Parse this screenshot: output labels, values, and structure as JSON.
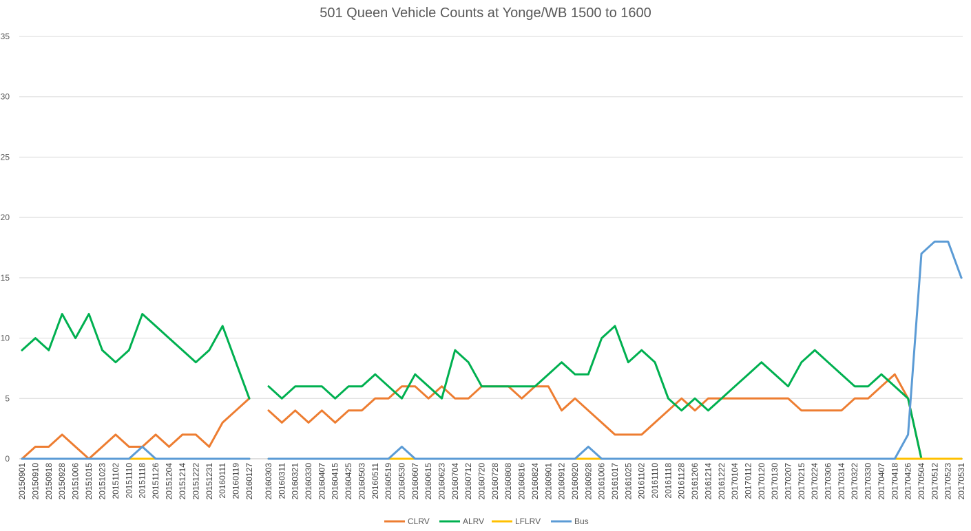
{
  "chart_data": {
    "type": "line",
    "title": "501 Queen Vehicle Counts at Yonge/WB 1500 to 1600",
    "xlabel": "",
    "ylabel": "",
    "ylim": [
      0,
      35
    ],
    "yticks": [
      0,
      5,
      10,
      15,
      20,
      25,
      30,
      35
    ],
    "grid": "horizontal",
    "legend_position": "bottom",
    "x_tick_labels": [
      "20150901",
      "20150910",
      "20150918",
      "20150928",
      "20151006",
      "20151015",
      "20151023",
      "20151102",
      "20151110",
      "20151118",
      "20151126",
      "20151204",
      "20151214",
      "20151222",
      "20151231",
      "20160111",
      "20160119",
      "20160127",
      "20160303",
      "20160311",
      "20160321",
      "20160330",
      "20160407",
      "20160415",
      "20160425",
      "20160503",
      "20160511",
      "20160519",
      "20160530",
      "20160607",
      "20160615",
      "20160623",
      "20160704",
      "20160712",
      "20160720",
      "20160728",
      "20160808",
      "20160816",
      "20160824",
      "20160901",
      "20160912",
      "20160920",
      "20160928",
      "20161006",
      "20161017",
      "20161025",
      "20161102",
      "20161110",
      "20161118",
      "20161128",
      "20161206",
      "20161214",
      "20161222",
      "20170104",
      "20170112",
      "20170120",
      "20170130",
      "20170207",
      "20170215",
      "20170224",
      "20170306",
      "20170314",
      "20170322",
      "20170330",
      "20170407",
      "20170418",
      "20170426",
      "20170504",
      "20170512",
      "20170523",
      "20170531"
    ],
    "segments": [
      {
        "x": [
          "20150901",
          "20150910",
          "20150918",
          "20150928",
          "20151006",
          "20151015",
          "20151023",
          "20151102",
          "20151110",
          "20151118",
          "20151126",
          "20151204",
          "20151214",
          "20151222",
          "20151231",
          "20160111",
          "20160119",
          "20160127"
        ],
        "series": [
          {
            "name": "CLRV",
            "color": "#ED7D31",
            "values": [
              0,
              1,
              1,
              2,
              1,
              0,
              1,
              2,
              1,
              1,
              2,
              1,
              2,
              2,
              1,
              3,
              4,
              5
            ]
          },
          {
            "name": "ALRV",
            "color": "#00B050",
            "values": [
              9,
              10,
              9,
              12,
              10,
              12,
              9,
              8,
              9,
              12,
              11,
              10,
              9,
              8,
              9,
              11,
              8,
              5
            ]
          },
          {
            "name": "LFLRV",
            "color": "#FFC000",
            "values": [
              0,
              0,
              0,
              0,
              0,
              0,
              0,
              0,
              0,
              0,
              0,
              0,
              0,
              0,
              0,
              0,
              0,
              0
            ]
          },
          {
            "name": "Bus",
            "color": "#5B9BD5",
            "values": [
              0,
              0,
              0,
              0,
              0,
              0,
              0,
              0,
              0,
              1,
              0,
              0,
              0,
              0,
              0,
              0,
              0,
              0
            ]
          }
        ]
      },
      {
        "x": [
          "20160303",
          "20160311",
          "20160321",
          "20160330",
          "20160407",
          "20160415",
          "20160425",
          "20160503",
          "20160511",
          "20160519",
          "20160530",
          "20160607",
          "20160615",
          "20160623",
          "20160704",
          "20160712",
          "20160720",
          "20160728",
          "20160808",
          "20160816",
          "20160824",
          "20160901",
          "20160912",
          "20160920",
          "20160928",
          "20161006",
          "20161017",
          "20161025",
          "20161102",
          "20161110",
          "20161118",
          "20161128",
          "20161206",
          "20161214",
          "20161222",
          "20170104",
          "20170112",
          "20170120",
          "20170130",
          "20170207",
          "20170215",
          "20170224",
          "20170306",
          "20170314",
          "20170322",
          "20170330",
          "20170407",
          "20170418",
          "20170426",
          "20170504",
          "20170512",
          "20170523",
          "20170531"
        ],
        "series": [
          {
            "name": "CLRV",
            "color": "#ED7D31",
            "values": [
              4,
              3,
              4,
              3,
              4,
              3,
              4,
              4,
              5,
              5,
              6,
              6,
              5,
              6,
              5,
              5,
              6,
              6,
              6,
              5,
              6,
              6,
              4,
              5,
              4,
              3,
              2,
              2,
              2,
              3,
              4,
              5,
              4,
              5,
              5,
              5,
              5,
              5,
              5,
              5,
              4,
              4,
              4,
              4,
              5,
              5,
              6,
              7,
              5,
              0,
              0,
              0,
              0
            ]
          },
          {
            "name": "ALRV",
            "color": "#00B050",
            "values": [
              6,
              5,
              6,
              6,
              6,
              5,
              6,
              6,
              7,
              6,
              5,
              7,
              6,
              5,
              9,
              8,
              6,
              6,
              6,
              6,
              6,
              7,
              8,
              7,
              7,
              10,
              11,
              8,
              9,
              8,
              5,
              4,
              5,
              4,
              5,
              6,
              7,
              8,
              7,
              6,
              8,
              9,
              8,
              7,
              6,
              6,
              7,
              6,
              5,
              0,
              0,
              0,
              0
            ]
          },
          {
            "name": "LFLRV",
            "color": "#FFC000",
            "values": [
              0,
              0,
              0,
              0,
              0,
              0,
              0,
              0,
              0,
              0,
              0,
              0,
              0,
              0,
              0,
              0,
              0,
              0,
              0,
              0,
              0,
              0,
              0,
              0,
              0,
              0,
              0,
              0,
              0,
              0,
              0,
              0,
              0,
              0,
              0,
              0,
              0,
              0,
              0,
              0,
              0,
              0,
              0,
              0,
              0,
              0,
              0,
              0,
              0,
              0,
              0,
              0,
              0
            ]
          },
          {
            "name": "Bus",
            "color": "#5B9BD5",
            "values": [
              0,
              0,
              0,
              0,
              0,
              0,
              0,
              0,
              0,
              0,
              1,
              0,
              0,
              0,
              0,
              0,
              0,
              0,
              0,
              0,
              0,
              0,
              0,
              0,
              1,
              0,
              0,
              0,
              0,
              0,
              0,
              0,
              0,
              0,
              0,
              0,
              0,
              0,
              0,
              0,
              0,
              0,
              0,
              0,
              0,
              0,
              0,
              0,
              2,
              17,
              18,
              18,
              15
            ]
          }
        ]
      }
    ]
  }
}
